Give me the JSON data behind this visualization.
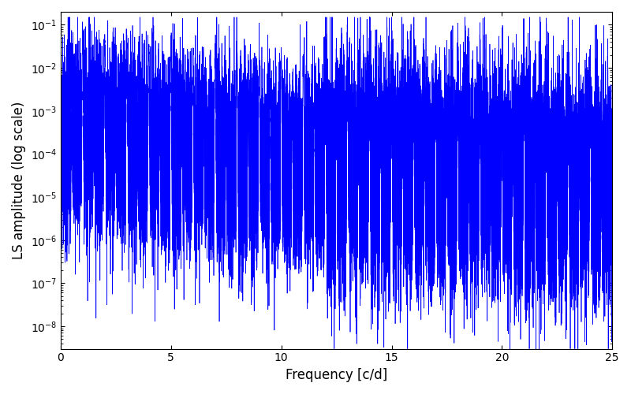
{
  "title": "",
  "xlabel": "Frequency [c/d]",
  "ylabel": "LS amplitude (log scale)",
  "line_color": "#0000ff",
  "line_width": 0.5,
  "xlim": [
    0,
    25
  ],
  "ylim": [
    3e-09,
    0.2
  ],
  "yscale": "log",
  "background_color": "#ffffff",
  "figsize": [
    8.0,
    5.0
  ],
  "dpi": 100,
  "n_points": 25000,
  "seed": 12345
}
